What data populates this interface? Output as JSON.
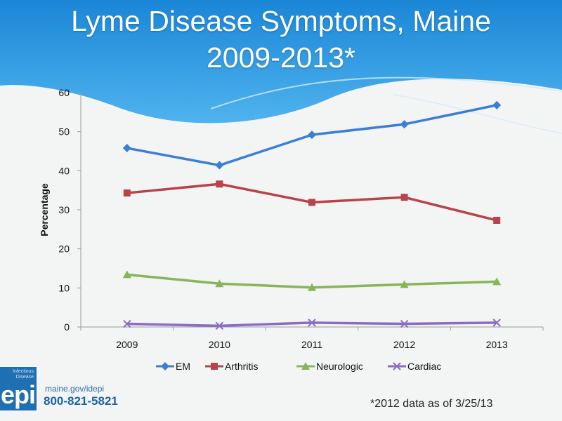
{
  "slide": {
    "title_line1": "Lyme Disease Symptoms, Maine",
    "title_line2": "2009-2013*",
    "footnote": "*2012 data as of 3/25/13"
  },
  "logo": {
    "small_text_1": "Infectious",
    "small_text_2": "Disease",
    "text": "epi",
    "url": "maine.gov/idepi",
    "phone": "800-821-5821"
  },
  "colors": {
    "banner": "#1f8ed8",
    "em": "#3a7fd5",
    "arthritis": "#b8434a",
    "neurologic": "#86b55a",
    "cardiac": "#8a6cc6"
  },
  "chart_data": {
    "type": "line",
    "title": "",
    "xlabel": "",
    "ylabel": "Percentage",
    "categories": [
      "2009",
      "2010",
      "2011",
      "2012",
      "2013"
    ],
    "ylim": [
      0,
      60
    ],
    "yticks": [
      0,
      10,
      20,
      30,
      40,
      50,
      60
    ],
    "grid": false,
    "legend": "bottom",
    "series": [
      {
        "name": "EM",
        "values": [
          45.8,
          41.4,
          49.2,
          51.9,
          56.8
        ],
        "marker": "diamond",
        "color": "#3a7fd5"
      },
      {
        "name": "Arthritis",
        "values": [
          34.3,
          36.6,
          31.9,
          33.2,
          27.3
        ],
        "marker": "square",
        "color": "#b8434a"
      },
      {
        "name": "Neurologic",
        "values": [
          13.4,
          11.1,
          10.1,
          10.9,
          11.6
        ],
        "marker": "triangle",
        "color": "#86b55a"
      },
      {
        "name": "Cardiac",
        "values": [
          0.8,
          0.3,
          1.1,
          0.8,
          1.1
        ],
        "marker": "x",
        "color": "#8a6cc6"
      }
    ]
  }
}
